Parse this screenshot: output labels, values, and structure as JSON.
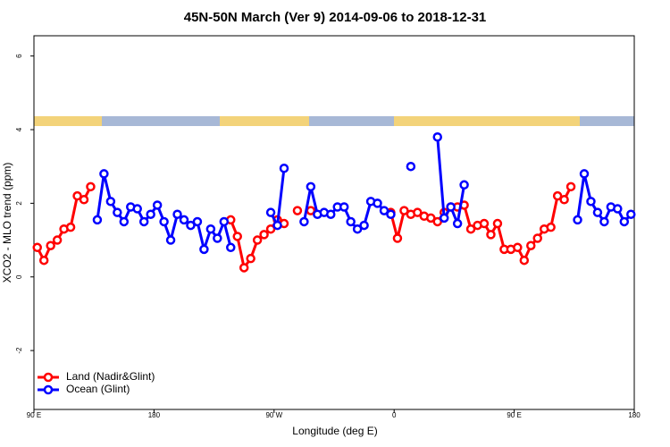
{
  "chart_data": {
    "type": "line",
    "title": "45N-50N March (Ver 9)   2014-09-06 to 2018-12-31",
    "xlabel": "Longitude (deg E)",
    "ylabel": "XCO2 - MLO trend (ppm)",
    "x": [
      92.5,
      97.5,
      102.5,
      107.5,
      112.5,
      117.5,
      122.5,
      127.5,
      132.5,
      137.5,
      142.5,
      147.5,
      152.5,
      157.5,
      162.5,
      167.5,
      172.5,
      177.5,
      182.5,
      187.5,
      192.5,
      197.5,
      202.5,
      207.5,
      212.5,
      217.5,
      222.5,
      227.5,
      232.5,
      237.5,
      242.5,
      247.5,
      252.5,
      257.5,
      262.5,
      267.5,
      272.5,
      277.5,
      282.5,
      287.5,
      292.5,
      297.5,
      302.5,
      307.5,
      312.5,
      317.5,
      322.5,
      327.5,
      332.5,
      337.5,
      342.5,
      347.5,
      352.5,
      357.5,
      362.5,
      367.5,
      372.5,
      377.5,
      382.5,
      387.5,
      392.5,
      397.5,
      402.5,
      407.5,
      412.5,
      417.5,
      422.5,
      427.5,
      432.5,
      437.5,
      442.5,
      447.5,
      452.5,
      457.5,
      462.5,
      467.5,
      472.5,
      477.5,
      482.5,
      487.5,
      492.5,
      497.5,
      502.5,
      507.5,
      512.5,
      517.5,
      522.5,
      527.5,
      532.5,
      537.5
    ],
    "series": [
      {
        "name": "Land (Nadir&Glint)",
        "color": "#ff0000",
        "values": [
          0.8,
          0.45,
          0.85,
          1.0,
          1.3,
          1.35,
          2.2,
          2.1,
          2.45,
          null,
          null,
          null,
          null,
          null,
          null,
          null,
          null,
          null,
          null,
          null,
          null,
          null,
          null,
          null,
          null,
          null,
          null,
          null,
          null,
          1.55,
          1.1,
          0.25,
          0.5,
          1.0,
          1.15,
          1.3,
          1.55,
          1.45,
          null,
          1.8,
          null,
          1.8,
          null,
          null,
          null,
          null,
          null,
          null,
          null,
          null,
          null,
          null,
          null,
          1.75,
          1.05,
          1.8,
          1.7,
          1.75,
          1.65,
          1.6,
          1.5,
          1.75,
          1.9,
          1.9,
          1.95,
          1.3,
          1.4,
          1.45,
          1.15,
          1.45,
          0.75,
          0.75,
          0.8,
          0.45,
          0.85,
          1.05,
          1.3,
          1.35,
          2.2,
          2.1,
          2.45,
          null,
          null,
          null,
          null,
          null,
          null,
          null,
          null,
          null
        ]
      },
      {
        "name": "Ocean (Glint)",
        "color": "#0000ff",
        "values": [
          null,
          null,
          null,
          null,
          null,
          null,
          null,
          null,
          null,
          1.55,
          2.8,
          2.05,
          1.75,
          1.5,
          1.9,
          1.85,
          1.5,
          1.7,
          1.95,
          1.5,
          1.0,
          1.7,
          1.55,
          1.4,
          1.5,
          0.75,
          1.3,
          1.05,
          1.5,
          0.8,
          null,
          null,
          null,
          null,
          null,
          1.75,
          1.4,
          2.95,
          null,
          null,
          1.5,
          2.45,
          1.7,
          1.75,
          1.7,
          1.9,
          1.9,
          1.5,
          1.3,
          1.4,
          2.05,
          2.0,
          1.8,
          1.7,
          null,
          null,
          3.0,
          null,
          null,
          null,
          3.8,
          1.6,
          1.9,
          1.45,
          2.5,
          null,
          null,
          null,
          null,
          null,
          null,
          null,
          null,
          null,
          null,
          null,
          null,
          null,
          null,
          null,
          null,
          1.55,
          2.8,
          2.05,
          1.75,
          1.5,
          1.9,
          1.85,
          1.5,
          1.7
        ]
      }
    ],
    "xlim": [
      90,
      540
    ],
    "xticks": [
      {
        "value": 90,
        "label": "90 E"
      },
      180,
      {
        "value": 270,
        "label": "90 W"
      },
      {
        "value": 360,
        "label": "0"
      },
      {
        "value": 450,
        "label": "90 E"
      },
      {
        "value": 540,
        "label": "180"
      }
    ],
    "ylim": [
      -3.6,
      6.55
    ],
    "yticks": [
      -2,
      0,
      2,
      4,
      6
    ],
    "legend": "bottom-left"
  }
}
